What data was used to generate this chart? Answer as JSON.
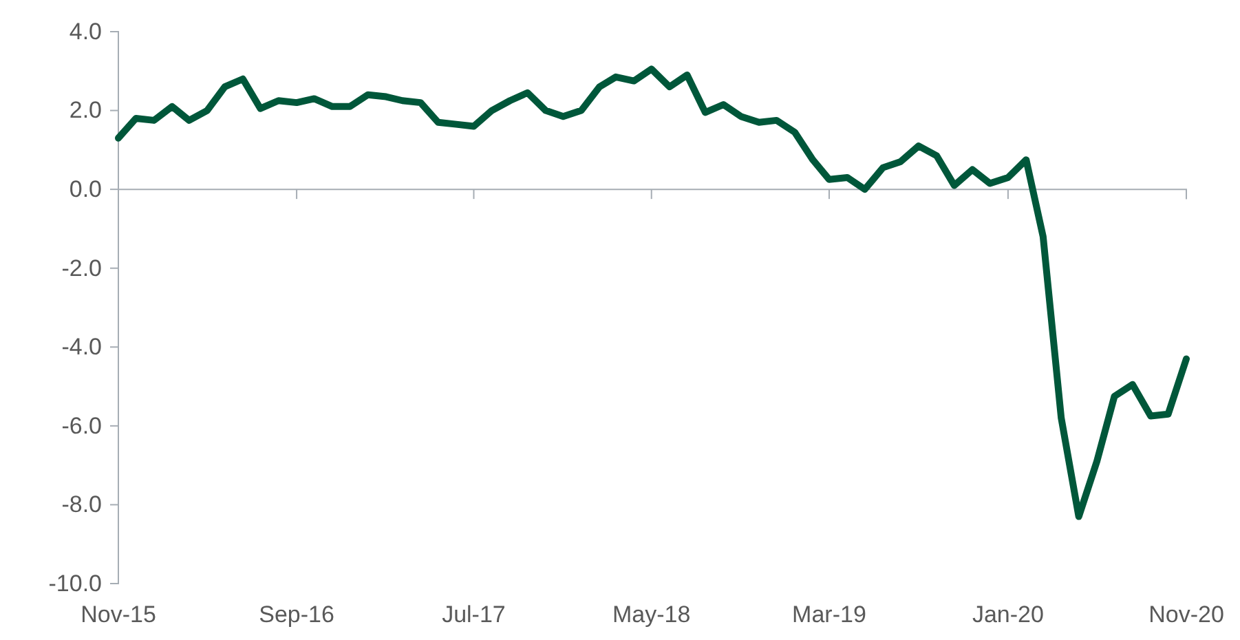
{
  "chart_data": {
    "type": "line",
    "x": [
      "2015-11",
      "2015-12",
      "2016-01",
      "2016-02",
      "2016-03",
      "2016-04",
      "2016-05",
      "2016-06",
      "2016-07",
      "2016-08",
      "2016-09",
      "2016-10",
      "2016-11",
      "2016-12",
      "2017-01",
      "2017-02",
      "2017-03",
      "2017-04",
      "2017-05",
      "2017-06",
      "2017-07",
      "2017-08",
      "2017-09",
      "2017-10",
      "2017-11",
      "2017-12",
      "2018-01",
      "2018-02",
      "2018-03",
      "2018-04",
      "2018-05",
      "2018-06",
      "2018-07",
      "2018-08",
      "2018-09",
      "2018-10",
      "2018-11",
      "2018-12",
      "2019-01",
      "2019-02",
      "2019-03",
      "2019-04",
      "2019-05",
      "2019-06",
      "2019-07",
      "2019-08",
      "2019-09",
      "2019-10",
      "2019-11",
      "2019-12",
      "2020-01",
      "2020-02",
      "2020-03",
      "2020-04",
      "2020-05",
      "2020-06",
      "2020-07",
      "2020-08",
      "2020-09",
      "2020-10",
      "2020-11"
    ],
    "series": [
      {
        "color": "#00573a",
        "values": [
          1.3,
          1.8,
          1.75,
          2.1,
          1.75,
          2.0,
          2.6,
          2.8,
          2.05,
          2.25,
          2.2,
          2.3,
          2.1,
          2.1,
          2.4,
          2.35,
          2.25,
          2.2,
          1.7,
          1.65,
          1.6,
          2.0,
          2.25,
          2.45,
          2.0,
          1.85,
          2.0,
          2.6,
          2.85,
          2.75,
          3.05,
          2.6,
          2.9,
          1.95,
          2.15,
          1.85,
          1.7,
          1.75,
          1.45,
          0.75,
          0.25,
          0.3,
          0.0,
          0.55,
          0.7,
          1.1,
          0.85,
          0.1,
          0.5,
          0.15,
          0.3,
          0.75,
          -1.2,
          -5.8,
          -8.3,
          -6.9,
          -5.25,
          -4.95,
          -5.75,
          -5.7,
          -4.3
        ]
      }
    ],
    "xlim": [
      "2015-11",
      "2020-11"
    ],
    "xticks": [
      {
        "value": "2015-11",
        "label": "Nov-15"
      },
      {
        "value": "2016-09",
        "label": "Sep-16"
      },
      {
        "value": "2017-07",
        "label": "Jul-17"
      },
      {
        "value": "2018-05",
        "label": "May-18"
      },
      {
        "value": "2019-03",
        "label": "Mar-19"
      },
      {
        "value": "2020-01",
        "label": "Jan-20"
      },
      {
        "value": "2020-11",
        "label": "Nov-20"
      }
    ],
    "ylim": [
      -10,
      4
    ],
    "yticks": [
      {
        "value": 4,
        "label": "4.0"
      },
      {
        "value": 2,
        "label": "2.0"
      },
      {
        "value": 0,
        "label": "0.0"
      },
      {
        "value": -2,
        "label": "-2.0"
      },
      {
        "value": -4,
        "label": "-4.0"
      },
      {
        "value": -6,
        "label": "-6.0"
      },
      {
        "value": -8,
        "label": "-8.0"
      },
      {
        "value": -10,
        "label": "-10.0"
      }
    ],
    "grid": false,
    "marker": "none",
    "line_style": "solid"
  }
}
